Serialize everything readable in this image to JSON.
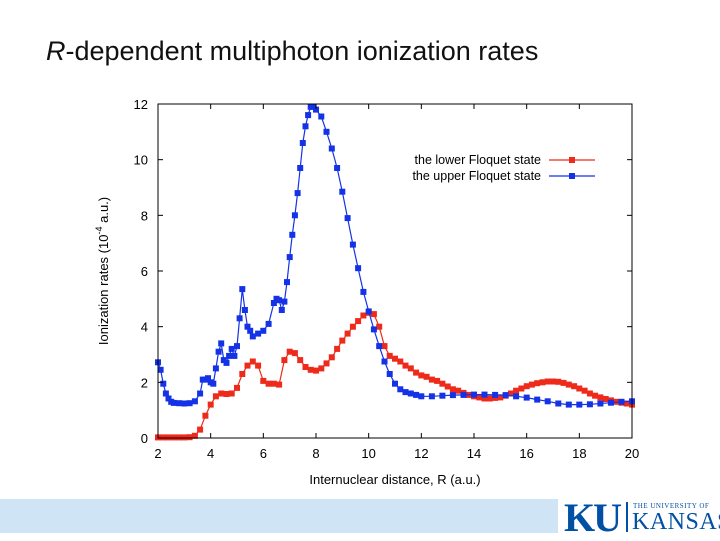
{
  "slide": {
    "title_italic": "R",
    "title_rest": "-dependent multiphoton ionization rates"
  },
  "logo": {
    "ku": "KU",
    "university": "THE UNIVERSITY OF",
    "kansas": "KANSAS"
  },
  "colors": {
    "lower_series": "#ee2a1b",
    "upper_series": "#1432e6",
    "footer_band": "#cfe5f5",
    "logo_blue": "#0051a5"
  },
  "chart_data": {
    "type": "line",
    "xlabel": "Internuclear distance, R (a.u.)",
    "ylabel_prefix": "Ionization rates (10",
    "ylabel_exp": "-4",
    "ylabel_suffix": " a.u.)",
    "xlim": [
      2,
      20
    ],
    "ylim": [
      0,
      12
    ],
    "xticks": [
      2,
      4,
      6,
      8,
      10,
      12,
      14,
      16,
      18,
      20
    ],
    "yticks": [
      0,
      2,
      4,
      6,
      8,
      10,
      12
    ],
    "grid": false,
    "legend_position": "top-right",
    "series": [
      {
        "name": "the lower Floquet state",
        "color": "#ee2a1b",
        "marker": "square",
        "points": [
          [
            2.0,
            0.02
          ],
          [
            2.2,
            0.02
          ],
          [
            2.4,
            0.02
          ],
          [
            2.6,
            0.02
          ],
          [
            2.8,
            0.02
          ],
          [
            3.0,
            0.02
          ],
          [
            3.2,
            0.03
          ],
          [
            3.4,
            0.08
          ],
          [
            3.6,
            0.3
          ],
          [
            3.8,
            0.8
          ],
          [
            4.0,
            1.2
          ],
          [
            4.2,
            1.5
          ],
          [
            4.4,
            1.6
          ],
          [
            4.6,
            1.58
          ],
          [
            4.8,
            1.6
          ],
          [
            5.0,
            1.8
          ],
          [
            5.2,
            2.3
          ],
          [
            5.4,
            2.6
          ],
          [
            5.6,
            2.75
          ],
          [
            5.8,
            2.6
          ],
          [
            6.0,
            2.05
          ],
          [
            6.2,
            1.95
          ],
          [
            6.4,
            1.95
          ],
          [
            6.6,
            1.92
          ],
          [
            6.8,
            2.8
          ],
          [
            7.0,
            3.1
          ],
          [
            7.2,
            3.05
          ],
          [
            7.4,
            2.8
          ],
          [
            7.6,
            2.55
          ],
          [
            7.8,
            2.45
          ],
          [
            8.0,
            2.42
          ],
          [
            8.2,
            2.5
          ],
          [
            8.4,
            2.68
          ],
          [
            8.6,
            2.9
          ],
          [
            8.8,
            3.2
          ],
          [
            9.0,
            3.5
          ],
          [
            9.2,
            3.75
          ],
          [
            9.4,
            4.0
          ],
          [
            9.6,
            4.2
          ],
          [
            9.8,
            4.4
          ],
          [
            10.0,
            4.5
          ],
          [
            10.2,
            4.45
          ],
          [
            10.4,
            4.0
          ],
          [
            10.6,
            3.3
          ],
          [
            10.8,
            2.95
          ],
          [
            11.0,
            2.85
          ],
          [
            11.2,
            2.75
          ],
          [
            11.4,
            2.6
          ],
          [
            11.6,
            2.5
          ],
          [
            11.8,
            2.35
          ],
          [
            12.0,
            2.25
          ],
          [
            12.2,
            2.2
          ],
          [
            12.4,
            2.1
          ],
          [
            12.6,
            2.05
          ],
          [
            12.8,
            1.95
          ],
          [
            13.0,
            1.85
          ],
          [
            13.2,
            1.75
          ],
          [
            13.4,
            1.7
          ],
          [
            13.6,
            1.62
          ],
          [
            13.8,
            1.55
          ],
          [
            14.0,
            1.5
          ],
          [
            14.2,
            1.46
          ],
          [
            14.4,
            1.42
          ],
          [
            14.6,
            1.42
          ],
          [
            14.8,
            1.44
          ],
          [
            15.0,
            1.46
          ],
          [
            15.2,
            1.52
          ],
          [
            15.4,
            1.6
          ],
          [
            15.6,
            1.7
          ],
          [
            15.8,
            1.78
          ],
          [
            16.0,
            1.86
          ],
          [
            16.2,
            1.92
          ],
          [
            16.4,
            1.97
          ],
          [
            16.6,
            2.0
          ],
          [
            16.8,
            2.03
          ],
          [
            17.0,
            2.03
          ],
          [
            17.2,
            2.02
          ],
          [
            17.4,
            1.98
          ],
          [
            17.6,
            1.92
          ],
          [
            17.8,
            1.86
          ],
          [
            18.0,
            1.78
          ],
          [
            18.2,
            1.7
          ],
          [
            18.4,
            1.6
          ],
          [
            18.6,
            1.52
          ],
          [
            18.8,
            1.46
          ],
          [
            19.0,
            1.4
          ],
          [
            19.2,
            1.35
          ],
          [
            19.4,
            1.3
          ],
          [
            19.6,
            1.27
          ],
          [
            19.8,
            1.24
          ],
          [
            20.0,
            1.2
          ]
        ]
      },
      {
        "name": "the upper Floquet state",
        "color": "#1432e6",
        "marker": "square",
        "points": [
          [
            2.0,
            2.72
          ],
          [
            2.1,
            2.45
          ],
          [
            2.2,
            1.95
          ],
          [
            2.3,
            1.6
          ],
          [
            2.4,
            1.42
          ],
          [
            2.5,
            1.3
          ],
          [
            2.6,
            1.26
          ],
          [
            2.8,
            1.25
          ],
          [
            3.0,
            1.24
          ],
          [
            3.2,
            1.25
          ],
          [
            3.4,
            1.32
          ],
          [
            3.6,
            1.6
          ],
          [
            3.7,
            2.1
          ],
          [
            3.8,
            2.1
          ],
          [
            3.9,
            2.15
          ],
          [
            4.0,
            2.0
          ],
          [
            4.1,
            1.95
          ],
          [
            4.2,
            2.5
          ],
          [
            4.3,
            3.1
          ],
          [
            4.4,
            3.4
          ],
          [
            4.5,
            2.8
          ],
          [
            4.6,
            2.7
          ],
          [
            4.7,
            2.95
          ],
          [
            4.8,
            3.2
          ],
          [
            4.9,
            2.95
          ],
          [
            5.0,
            3.3
          ],
          [
            5.1,
            4.3
          ],
          [
            5.2,
            5.35
          ],
          [
            5.3,
            4.6
          ],
          [
            5.4,
            4.0
          ],
          [
            5.5,
            3.85
          ],
          [
            5.6,
            3.65
          ],
          [
            5.8,
            3.75
          ],
          [
            6.0,
            3.85
          ],
          [
            6.2,
            4.1
          ],
          [
            6.4,
            4.85
          ],
          [
            6.5,
            5.0
          ],
          [
            6.6,
            4.95
          ],
          [
            6.7,
            4.6
          ],
          [
            6.8,
            4.9
          ],
          [
            6.9,
            5.6
          ],
          [
            7.0,
            6.5
          ],
          [
            7.1,
            7.3
          ],
          [
            7.2,
            8.0
          ],
          [
            7.3,
            8.8
          ],
          [
            7.4,
            9.7
          ],
          [
            7.5,
            10.6
          ],
          [
            7.6,
            11.2
          ],
          [
            7.7,
            11.6
          ],
          [
            7.8,
            11.9
          ],
          [
            7.9,
            11.9
          ],
          [
            8.0,
            11.8
          ],
          [
            8.2,
            11.55
          ],
          [
            8.4,
            11.0
          ],
          [
            8.6,
            10.4
          ],
          [
            8.8,
            9.7
          ],
          [
            9.0,
            8.85
          ],
          [
            9.2,
            7.9
          ],
          [
            9.4,
            6.95
          ],
          [
            9.6,
            6.1
          ],
          [
            9.8,
            5.25
          ],
          [
            10.0,
            4.55
          ],
          [
            10.2,
            3.9
          ],
          [
            10.4,
            3.3
          ],
          [
            10.6,
            2.75
          ],
          [
            10.8,
            2.3
          ],
          [
            11.0,
            1.95
          ],
          [
            11.2,
            1.75
          ],
          [
            11.4,
            1.65
          ],
          [
            11.6,
            1.6
          ],
          [
            11.8,
            1.55
          ],
          [
            12.0,
            1.5
          ],
          [
            12.4,
            1.5
          ],
          [
            12.8,
            1.52
          ],
          [
            13.2,
            1.54
          ],
          [
            13.6,
            1.55
          ],
          [
            14.0,
            1.56
          ],
          [
            14.4,
            1.56
          ],
          [
            14.8,
            1.55
          ],
          [
            15.2,
            1.54
          ],
          [
            15.6,
            1.5
          ],
          [
            16.0,
            1.45
          ],
          [
            16.4,
            1.38
          ],
          [
            16.8,
            1.32
          ],
          [
            17.2,
            1.24
          ],
          [
            17.6,
            1.2
          ],
          [
            18.0,
            1.2
          ],
          [
            18.4,
            1.21
          ],
          [
            18.8,
            1.24
          ],
          [
            19.2,
            1.27
          ],
          [
            19.6,
            1.3
          ],
          [
            20.0,
            1.32
          ]
        ]
      }
    ]
  }
}
